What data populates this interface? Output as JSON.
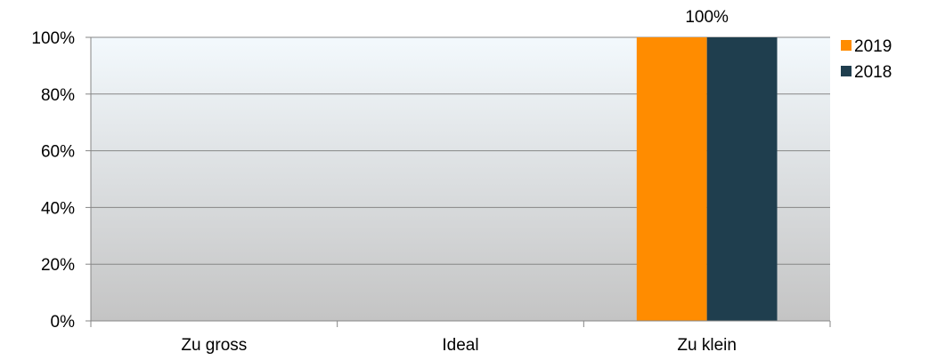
{
  "chart_data": {
    "type": "bar",
    "categories": [
      "Zu gross",
      "Ideal",
      "Zu klein"
    ],
    "series": [
      {
        "name": "2019",
        "values": [
          0,
          0,
          100
        ],
        "color": "#FF8C00"
      },
      {
        "name": "2018",
        "values": [
          0,
          0,
          100
        ],
        "color": "#1F3E4E"
      }
    ],
    "y_ticks": [
      "0%",
      "20%",
      "40%",
      "60%",
      "80%",
      "100%"
    ],
    "ylim": [
      0,
      100
    ],
    "data_labels": [
      {
        "category": "Zu klein",
        "text": "100%"
      }
    ],
    "grid": true,
    "legend": "right",
    "plot_gradient": [
      "#F3F9FD",
      "#C4C4C4"
    ]
  }
}
